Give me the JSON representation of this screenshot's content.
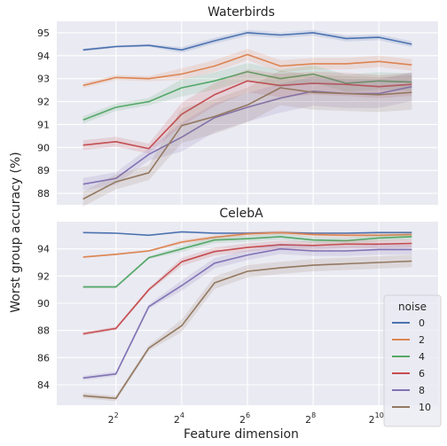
{
  "figure": {
    "ylabel": "Worst group accuracy (%)",
    "xlabel": "Feature dimension"
  },
  "legend": {
    "title": "noise",
    "entries": [
      {
        "label": "0",
        "color": "#4c72b0"
      },
      {
        "label": "2",
        "color": "#dd8452"
      },
      {
        "label": "4",
        "color": "#55a868"
      },
      {
        "label": "6",
        "color": "#c44e52"
      },
      {
        "label": "8",
        "color": "#8172b3"
      },
      {
        "label": "10",
        "color": "#937860"
      }
    ],
    "placement": "lower-right"
  },
  "chart_data": [
    {
      "type": "line",
      "title": "Waterbirds",
      "x": [
        1,
        2,
        3,
        4,
        5,
        6,
        7,
        8,
        9,
        10,
        11
      ],
      "xtick_values": [
        2,
        4,
        6,
        8,
        10
      ],
      "xtick_labels": [
        "2",
        "4",
        "6",
        "8",
        "10"
      ],
      "xtick_base": "2",
      "ylim": [
        87.5,
        95.5
      ],
      "yticks": [
        88,
        89,
        90,
        91,
        92,
        93,
        94,
        95
      ],
      "grid": true,
      "series": [
        {
          "name": "0",
          "color": "#4c72b0",
          "values": [
            94.25,
            94.4,
            94.45,
            94.25,
            94.65,
            95.0,
            94.9,
            95.0,
            94.75,
            94.8,
            94.5
          ]
        },
        {
          "name": "2",
          "color": "#dd8452",
          "values": [
            92.7,
            93.05,
            93.0,
            93.2,
            93.55,
            94.05,
            93.55,
            93.65,
            93.65,
            93.75,
            93.6
          ]
        },
        {
          "name": "4",
          "color": "#55a868",
          "values": [
            91.2,
            91.75,
            92.0,
            92.6,
            92.9,
            93.3,
            93.0,
            93.2,
            92.8,
            92.9,
            92.85
          ]
        },
        {
          "name": "6",
          "color": "#c44e52",
          "values": [
            90.1,
            90.25,
            89.95,
            91.45,
            92.3,
            92.9,
            92.7,
            92.8,
            92.75,
            92.65,
            92.75
          ]
        },
        {
          "name": "8",
          "color": "#8172b3",
          "values": [
            88.4,
            88.65,
            89.7,
            90.45,
            91.3,
            91.75,
            92.15,
            92.45,
            92.35,
            92.35,
            92.65
          ]
        },
        {
          "name": "10",
          "color": "#937860",
          "values": [
            87.75,
            88.5,
            88.9,
            90.95,
            91.35,
            91.85,
            92.6,
            92.4,
            92.35,
            92.3,
            92.4
          ]
        }
      ]
    },
    {
      "type": "line",
      "title": "CelebA",
      "x": [
        1,
        2,
        3,
        4,
        5,
        6,
        7,
        8,
        9,
        10,
        11
      ],
      "xtick_values": [
        2,
        4,
        6,
        8,
        10
      ],
      "xtick_labels": [
        "2",
        "4",
        "6",
        "8",
        "10"
      ],
      "xtick_base": "2",
      "ylim": [
        82.5,
        96.0
      ],
      "yticks": [
        84,
        86,
        88,
        90,
        92,
        94
      ],
      "grid": true,
      "series": [
        {
          "name": "0",
          "color": "#4c72b0",
          "values": [
            95.2,
            95.15,
            95.0,
            95.25,
            95.15,
            95.15,
            95.2,
            95.15,
            95.15,
            95.2,
            95.2
          ]
        },
        {
          "name": "2",
          "color": "#dd8452",
          "values": [
            93.4,
            93.6,
            93.85,
            94.5,
            94.85,
            95.1,
            95.2,
            95.05,
            95.0,
            95.0,
            95.05
          ]
        },
        {
          "name": "4",
          "color": "#55a868",
          "values": [
            91.2,
            91.2,
            93.35,
            94.0,
            94.65,
            94.75,
            94.9,
            94.65,
            94.6,
            94.8,
            94.9
          ]
        },
        {
          "name": "6",
          "color": "#c44e52",
          "values": [
            87.75,
            88.15,
            91.0,
            93.05,
            93.8,
            94.1,
            94.3,
            94.25,
            94.35,
            94.35,
            94.4
          ]
        },
        {
          "name": "8",
          "color": "#8172b3",
          "values": [
            84.5,
            84.8,
            89.75,
            91.3,
            92.95,
            93.55,
            94.0,
            93.85,
            93.85,
            93.95,
            93.95
          ]
        },
        {
          "name": "10",
          "color": "#937860",
          "values": [
            83.2,
            83.0,
            86.7,
            88.35,
            91.5,
            92.35,
            92.6,
            92.8,
            92.9,
            93.0,
            93.1
          ]
        }
      ]
    }
  ]
}
